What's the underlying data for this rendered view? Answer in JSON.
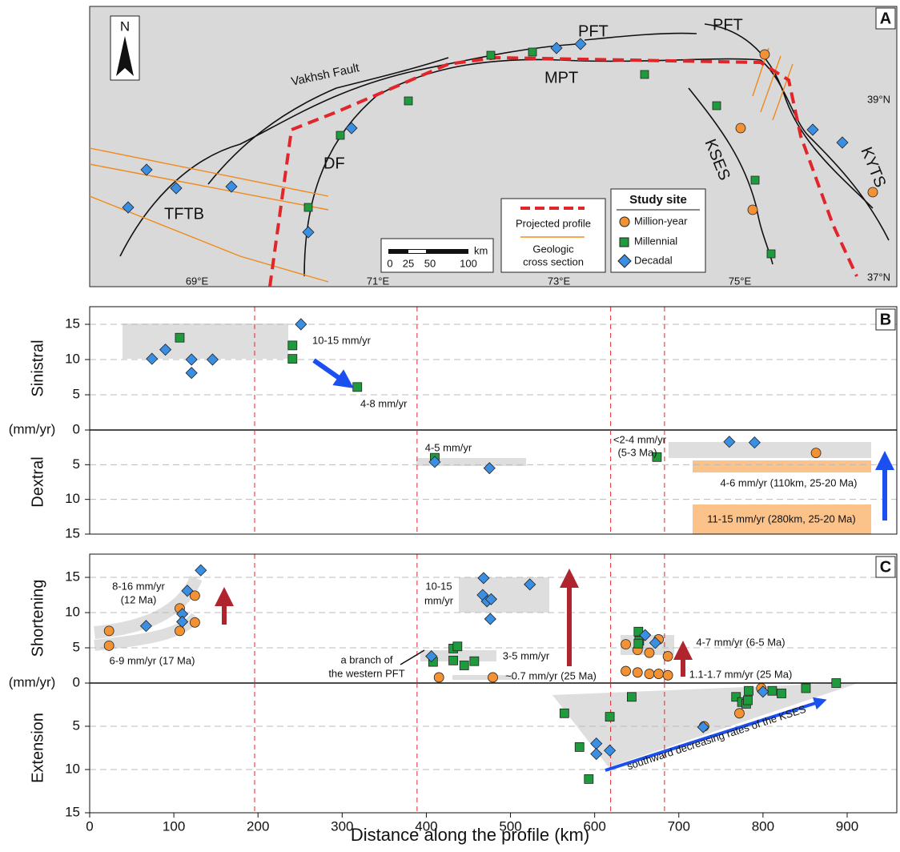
{
  "map": {
    "panel": "A",
    "north": "N",
    "labels": [
      "PFT",
      "PFT",
      "Vakhsh Fault",
      "MPT",
      "KSES",
      "KYTS",
      "DF",
      "TFTB"
    ],
    "lon_labels": [
      "69°E",
      "71°E",
      "73°E",
      "75°E"
    ],
    "lat_labels": [
      "39°N",
      "37°N"
    ],
    "scale": [
      "km",
      "0",
      "25",
      "50",
      "100"
    ],
    "profile_legend": [
      "Projected profile",
      "Geologic",
      "cross section"
    ],
    "site_legend_title": "Study site"
  },
  "chart_data": [
    {
      "type": "scatter",
      "panel": "B",
      "ylabel": "Sinistral",
      "unit_label": "(mm/yr)",
      "xlim": [
        0,
        959
      ],
      "ylim": [
        0,
        17.5
      ],
      "yticks": [
        0,
        5,
        10,
        15
      ],
      "grid": true,
      "inverted": false,
      "reference_lines_x": [
        196,
        389,
        619,
        683
      ],
      "annotations": [
        "10-15 mm/yr",
        "4-8 mm/yr"
      ],
      "series": [
        {
          "name": "Million-year",
          "color": "#f39234",
          "marker": "circle",
          "x": [],
          "values": []
        },
        {
          "name": "Millennial",
          "color": "#1f9a3c",
          "marker": "square",
          "x": [
            107,
            241,
            241,
            318
          ],
          "values": [
            13.1,
            12,
            10.1,
            6.1
          ]
        },
        {
          "name": "Decadal",
          "color": "#3b8fe3",
          "marker": "diamond",
          "x": [
            74,
            90,
            121,
            121,
            146,
            251
          ],
          "values": [
            10.1,
            11.4,
            10,
            8.1,
            10,
            15
          ]
        }
      ]
    },
    {
      "type": "scatter",
      "ylabel": "Dextral",
      "xlim": [
        0,
        959
      ],
      "ylim": [
        0,
        15
      ],
      "yticks": [
        5,
        10,
        15
      ],
      "grid": true,
      "inverted": true,
      "reference_lines_x": [
        196,
        389,
        619,
        683
      ],
      "annotations": [
        "4-5 mm/yr",
        "<2-4 mm/yr",
        "(5-3 Ma)",
        "4-6 mm/yr (110km, 25-20 Ma)",
        "11-15 mm/yr (280km, 25-20 Ma)"
      ],
      "series": [
        {
          "color": "#f39234",
          "marker": "circle",
          "x": [
            863
          ],
          "values": [
            3.3
          ]
        },
        {
          "color": "#1f9a3c",
          "marker": "square",
          "x": [
            410,
            674
          ],
          "values": [
            4,
            3.9
          ]
        },
        {
          "color": "#3b8fe3",
          "marker": "diamond",
          "x": [
            410,
            475,
            760,
            790
          ],
          "values": [
            4.6,
            5.5,
            1.7,
            1.8
          ]
        }
      ]
    },
    {
      "type": "scatter",
      "panel": "C",
      "ylabel": "Shortening",
      "unit_label": "(mm/yr)",
      "xlim": [
        0,
        959
      ],
      "ylim": [
        0,
        18.3
      ],
      "yticks": [
        0,
        5,
        10,
        15
      ],
      "grid": true,
      "inverted": false,
      "reference_lines_x": [
        196,
        389,
        619,
        683
      ],
      "annotations": [
        "8-16 mm/yr",
        "(12 Ma)",
        "6-9 mm/yr (17 Ma)",
        "10-15",
        "mm/yr",
        "a branch of",
        "the western PFT",
        "3-5 mm/yr",
        "~0.7 mm/yr (25 Ma)",
        "4-7 mm/yr (6-5 Ma)",
        "1.1-1.7 mm/yr (25 Ma)"
      ],
      "series": [
        {
          "color": "#f39234",
          "marker": "circle",
          "x": [
            23,
            23,
            107,
            107,
            125,
            125,
            415,
            479,
            637,
            651,
            665,
            676,
            687,
            637,
            651,
            665,
            676,
            687
          ],
          "values": [
            7.4,
            5.3,
            10.6,
            7.4,
            12.4,
            8.6,
            0.8,
            0.8,
            5.5,
            4.7,
            4.3,
            6.2,
            3.8,
            1.7,
            1.5,
            1.3,
            1.3,
            1.1
          ]
        },
        {
          "color": "#1f9a3c",
          "marker": "square",
          "x": [
            408,
            432,
            437,
            432,
            445,
            457,
            652,
            653,
            652
          ],
          "values": [
            3,
            4.9,
            5.2,
            3.2,
            2.5,
            3.1,
            7.3,
            6,
            5.6
          ]
        },
        {
          "color": "#3b8fe3",
          "marker": "diamond",
          "x": [
            67,
            110,
            110,
            116,
            132,
            406,
            468,
            467,
            472,
            477,
            476,
            523,
            660,
            672
          ],
          "values": [
            8.1,
            9.8,
            8.7,
            13.1,
            16,
            3.8,
            14.9,
            12.5,
            11.6,
            11.9,
            9.1,
            14,
            6.8,
            5.7
          ]
        }
      ]
    },
    {
      "type": "scatter",
      "ylabel": "Extension",
      "xlabel": "Distance along the profile (km)",
      "xlim": [
        0,
        959
      ],
      "ylim": [
        0,
        15
      ],
      "yticks": [
        5,
        10,
        15
      ],
      "xticks": [
        0,
        100,
        200,
        300,
        400,
        500,
        600,
        700,
        800,
        900
      ],
      "grid": true,
      "inverted": true,
      "reference_lines_x": [
        196,
        389,
        619,
        683
      ],
      "annotations": [
        "southward decreasing rates of the KSES"
      ],
      "series": [
        {
          "color": "#f39234",
          "marker": "circle",
          "x": [
            730,
            772,
            798
          ],
          "values": [
            5,
            3.5,
            0.6
          ]
        },
        {
          "color": "#1f9a3c",
          "marker": "square",
          "x": [
            564,
            582,
            593,
            618,
            644,
            768,
            775,
            780,
            782,
            783,
            811,
            822,
            851,
            887
          ],
          "values": [
            3.5,
            7.4,
            11.1,
            3.9,
            1.6,
            1.6,
            2.2,
            2.4,
            2,
            0.9,
            0.9,
            1.2,
            0.6,
            0
          ]
        },
        {
          "color": "#3b8fe3",
          "marker": "diamond",
          "x": [
            602,
            602,
            618,
            729,
            800
          ],
          "values": [
            7,
            8.2,
            7.8,
            5.1,
            1
          ]
        }
      ]
    }
  ]
}
